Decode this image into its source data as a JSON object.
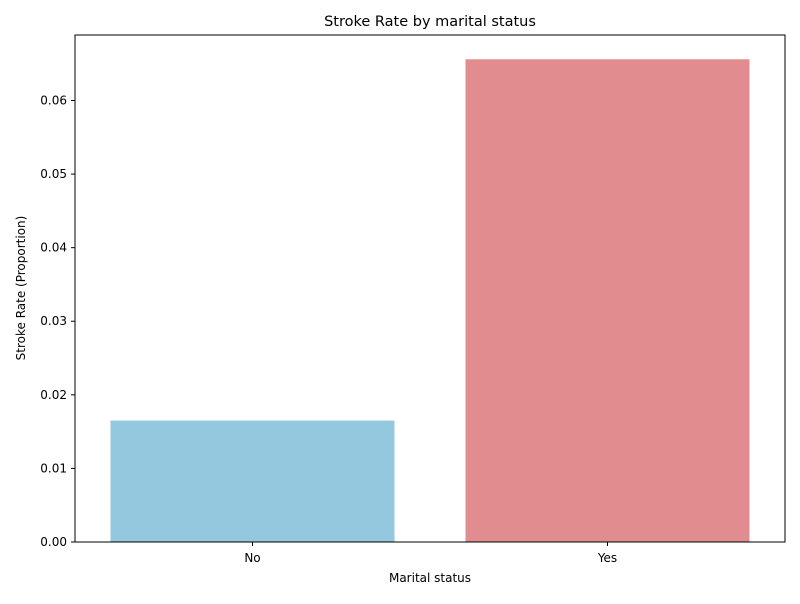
{
  "chart_data": {
    "type": "bar",
    "title": "Stroke Rate by marital status",
    "xlabel": "Marital status",
    "ylabel": "Stroke Rate (Proportion)",
    "categories": [
      "No",
      "Yes"
    ],
    "values": [
      0.0165,
      0.0656
    ],
    "colors": [
      "#93c8de",
      "#e18c8e"
    ],
    "ylim": [
      0,
      0.0689
    ],
    "yticks": [
      0.0,
      0.01,
      0.02,
      0.03,
      0.04,
      0.05,
      0.06
    ],
    "ytick_labels": [
      "0.00",
      "0.01",
      "0.02",
      "0.03",
      "0.04",
      "0.05",
      "0.06"
    ],
    "grid": false,
    "legend": "none"
  }
}
